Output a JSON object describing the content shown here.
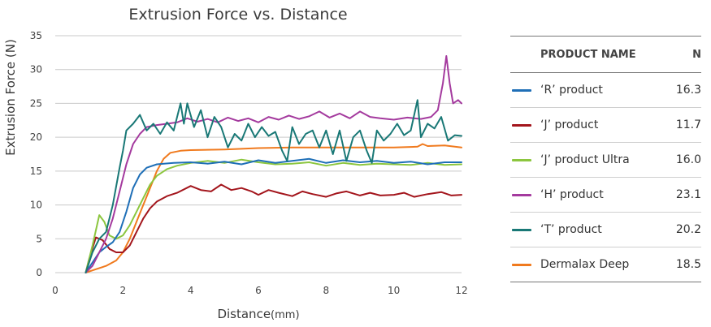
{
  "chart_data": {
    "type": "line",
    "title": "Extrusion Force vs. Distance",
    "xlabel": "Distance",
    "xlabel_unit": "(mm)",
    "ylabel": "Extrusion Force (N)",
    "xlim": [
      0,
      12
    ],
    "ylim": [
      0,
      35
    ],
    "xticks": [
      "0",
      "2",
      "4",
      "6",
      "8",
      "10",
      "12"
    ],
    "yticks": [
      "0",
      "5",
      "10",
      "15",
      "20",
      "25",
      "30",
      "35"
    ],
    "grid": "horizontal",
    "legend_placement": "right",
    "legend_header": {
      "name": "PRODUCT NAME",
      "n": "N"
    },
    "series": [
      {
        "name": "‘R’ product",
        "n": "16.3",
        "color": "#1f6fb7",
        "points": [
          [
            0.9,
            0
          ],
          [
            1.1,
            1.5
          ],
          [
            1.3,
            3
          ],
          [
            1.5,
            3.8
          ],
          [
            1.7,
            4.5
          ],
          [
            1.9,
            6
          ],
          [
            2.1,
            9
          ],
          [
            2.3,
            12.5
          ],
          [
            2.5,
            14.5
          ],
          [
            2.7,
            15.5
          ],
          [
            3.0,
            16
          ],
          [
            3.5,
            16.2
          ],
          [
            4,
            16.3
          ],
          [
            4.5,
            16.1
          ],
          [
            5,
            16.4
          ],
          [
            5.5,
            16
          ],
          [
            6,
            16.6
          ],
          [
            6.5,
            16.2
          ],
          [
            7,
            16.5
          ],
          [
            7.5,
            16.8
          ],
          [
            8,
            16.2
          ],
          [
            8.5,
            16.6
          ],
          [
            9,
            16.3
          ],
          [
            9.5,
            16.5
          ],
          [
            10,
            16.2
          ],
          [
            10.5,
            16.4
          ],
          [
            11,
            16
          ],
          [
            11.5,
            16.3
          ],
          [
            12,
            16.3
          ]
        ]
      },
      {
        "name": "‘J’ product",
        "n": "11.7",
        "color": "#a3151c",
        "points": [
          [
            0.9,
            0
          ],
          [
            1.0,
            2
          ],
          [
            1.2,
            5.2
          ],
          [
            1.4,
            4.8
          ],
          [
            1.6,
            3.5
          ],
          [
            1.8,
            3
          ],
          [
            2.0,
            3
          ],
          [
            2.2,
            4
          ],
          [
            2.4,
            6
          ],
          [
            2.6,
            8
          ],
          [
            2.8,
            9.5
          ],
          [
            3.0,
            10.5
          ],
          [
            3.3,
            11.3
          ],
          [
            3.6,
            11.8
          ],
          [
            4,
            12.8
          ],
          [
            4.3,
            12.2
          ],
          [
            4.6,
            12
          ],
          [
            4.9,
            13
          ],
          [
            5.2,
            12.2
          ],
          [
            5.5,
            12.5
          ],
          [
            5.8,
            12
          ],
          [
            6,
            11.5
          ],
          [
            6.3,
            12.2
          ],
          [
            6.6,
            11.8
          ],
          [
            7,
            11.3
          ],
          [
            7.3,
            12
          ],
          [
            7.6,
            11.6
          ],
          [
            8,
            11.2
          ],
          [
            8.3,
            11.7
          ],
          [
            8.6,
            12
          ],
          [
            9,
            11.4
          ],
          [
            9.3,
            11.8
          ],
          [
            9.6,
            11.4
          ],
          [
            10,
            11.5
          ],
          [
            10.3,
            11.8
          ],
          [
            10.6,
            11.2
          ],
          [
            11,
            11.6
          ],
          [
            11.4,
            11.9
          ],
          [
            11.7,
            11.4
          ],
          [
            12,
            11.5
          ]
        ]
      },
      {
        "name": "‘J’ product Ultra",
        "n": "16.0",
        "color": "#8cc63f",
        "points": [
          [
            0.9,
            0
          ],
          [
            1.1,
            4
          ],
          [
            1.3,
            8.5
          ],
          [
            1.45,
            7.5
          ],
          [
            1.6,
            5.5
          ],
          [
            1.8,
            5
          ],
          [
            2.0,
            5.5
          ],
          [
            2.2,
            7
          ],
          [
            2.4,
            9
          ],
          [
            2.6,
            11
          ],
          [
            2.8,
            13
          ],
          [
            3.0,
            14.3
          ],
          [
            3.3,
            15.3
          ],
          [
            3.6,
            15.8
          ],
          [
            4,
            16.2
          ],
          [
            4.5,
            16.5
          ],
          [
            5,
            16.2
          ],
          [
            5.5,
            16.7
          ],
          [
            6,
            16.3
          ],
          [
            6.5,
            16
          ],
          [
            7,
            16.1
          ],
          [
            7.5,
            16.3
          ],
          [
            8,
            15.8
          ],
          [
            8.5,
            16.2
          ],
          [
            9,
            15.9
          ],
          [
            9.5,
            16.1
          ],
          [
            10,
            16
          ],
          [
            10.5,
            15.9
          ],
          [
            11,
            16.2
          ],
          [
            11.5,
            15.9
          ],
          [
            12,
            16.0
          ]
        ]
      },
      {
        "name": "‘H’ product",
        "n": "23.1",
        "color": "#a43a9e",
        "points": [
          [
            0.9,
            0
          ],
          [
            1.1,
            1
          ],
          [
            1.3,
            3
          ],
          [
            1.5,
            5
          ],
          [
            1.7,
            8
          ],
          [
            1.9,
            12
          ],
          [
            2.1,
            16
          ],
          [
            2.3,
            19
          ],
          [
            2.5,
            20.5
          ],
          [
            2.7,
            21.5
          ],
          [
            3,
            21.8
          ],
          [
            3.3,
            22
          ],
          [
            3.6,
            22.2
          ],
          [
            3.9,
            22.8
          ],
          [
            4.2,
            22.3
          ],
          [
            4.5,
            22.7
          ],
          [
            4.8,
            22.2
          ],
          [
            5.1,
            22.9
          ],
          [
            5.4,
            22.4
          ],
          [
            5.7,
            22.8
          ],
          [
            6,
            22.2
          ],
          [
            6.3,
            23
          ],
          [
            6.6,
            22.6
          ],
          [
            6.9,
            23.2
          ],
          [
            7.2,
            22.7
          ],
          [
            7.5,
            23.1
          ],
          [
            7.8,
            23.8
          ],
          [
            8.1,
            22.9
          ],
          [
            8.4,
            23.5
          ],
          [
            8.7,
            22.8
          ],
          [
            9,
            23.8
          ],
          [
            9.3,
            23
          ],
          [
            9.6,
            22.8
          ],
          [
            10,
            22.6
          ],
          [
            10.4,
            22.9
          ],
          [
            10.8,
            22.7
          ],
          [
            11.1,
            23
          ],
          [
            11.3,
            24
          ],
          [
            11.45,
            28
          ],
          [
            11.55,
            32
          ],
          [
            11.65,
            28
          ],
          [
            11.75,
            25
          ],
          [
            11.9,
            25.5
          ],
          [
            12,
            25
          ]
        ]
      },
      {
        "name": "‘T’ product",
        "n": "20.2",
        "color": "#197876",
        "points": [
          [
            0.9,
            0
          ],
          [
            1.1,
            3
          ],
          [
            1.3,
            5
          ],
          [
            1.5,
            6
          ],
          [
            1.7,
            10
          ],
          [
            1.9,
            15.5
          ],
          [
            2.0,
            18
          ],
          [
            2.1,
            21
          ],
          [
            2.3,
            22
          ],
          [
            2.5,
            23.3
          ],
          [
            2.7,
            21
          ],
          [
            2.9,
            22
          ],
          [
            3.1,
            20.5
          ],
          [
            3.3,
            22.2
          ],
          [
            3.5,
            21
          ],
          [
            3.7,
            25
          ],
          [
            3.8,
            22
          ],
          [
            3.9,
            25
          ],
          [
            4.1,
            21.5
          ],
          [
            4.3,
            24
          ],
          [
            4.5,
            20
          ],
          [
            4.7,
            23
          ],
          [
            4.9,
            21.5
          ],
          [
            5.1,
            18.5
          ],
          [
            5.3,
            20.5
          ],
          [
            5.5,
            19.5
          ],
          [
            5.7,
            22
          ],
          [
            5.9,
            20
          ],
          [
            6.1,
            21.5
          ],
          [
            6.3,
            20.2
          ],
          [
            6.5,
            20.8
          ],
          [
            6.7,
            18
          ],
          [
            6.85,
            16.5
          ],
          [
            7,
            21.5
          ],
          [
            7.2,
            19
          ],
          [
            7.4,
            20.5
          ],
          [
            7.6,
            21
          ],
          [
            7.8,
            18.5
          ],
          [
            8,
            21
          ],
          [
            8.2,
            17.5
          ],
          [
            8.4,
            21
          ],
          [
            8.6,
            16.5
          ],
          [
            8.8,
            20
          ],
          [
            9,
            21
          ],
          [
            9.2,
            18
          ],
          [
            9.35,
            16.2
          ],
          [
            9.5,
            21
          ],
          [
            9.7,
            19.5
          ],
          [
            9.9,
            20.5
          ],
          [
            10.1,
            22
          ],
          [
            10.3,
            20.3
          ],
          [
            10.5,
            21
          ],
          [
            10.7,
            25.5
          ],
          [
            10.8,
            20
          ],
          [
            11,
            22
          ],
          [
            11.2,
            21.3
          ],
          [
            11.4,
            23
          ],
          [
            11.6,
            19.5
          ],
          [
            11.8,
            20.3
          ],
          [
            12,
            20.2
          ]
        ]
      },
      {
        "name": "Dermalax Deep",
        "n": "18.5",
        "color": "#f07a1e",
        "points": [
          [
            0.9,
            0
          ],
          [
            1.2,
            0.5
          ],
          [
            1.5,
            1
          ],
          [
            1.8,
            1.8
          ],
          [
            2.0,
            3
          ],
          [
            2.2,
            5
          ],
          [
            2.4,
            7.5
          ],
          [
            2.6,
            10
          ],
          [
            2.8,
            12.5
          ],
          [
            3.0,
            15
          ],
          [
            3.2,
            16.8
          ],
          [
            3.4,
            17.7
          ],
          [
            3.7,
            18
          ],
          [
            4,
            18.1
          ],
          [
            5,
            18.2
          ],
          [
            6,
            18.4
          ],
          [
            7,
            18.5
          ],
          [
            8,
            18.5
          ],
          [
            9,
            18.5
          ],
          [
            10,
            18.5
          ],
          [
            10.7,
            18.6
          ],
          [
            10.85,
            19
          ],
          [
            11,
            18.7
          ],
          [
            11.5,
            18.8
          ],
          [
            12,
            18.5
          ]
        ]
      }
    ]
  }
}
